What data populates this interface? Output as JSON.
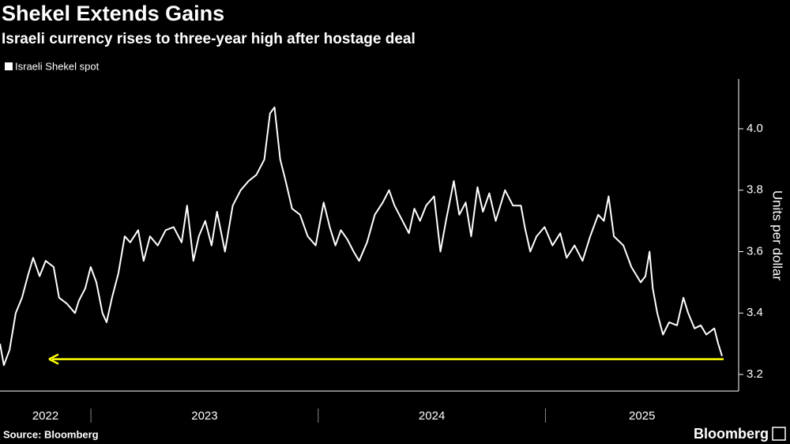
{
  "chart_data": {
    "type": "line",
    "title": "Shekel Extends Gains",
    "subtitle": "Israeli currency rises to three-year high after hostage deal",
    "y_label": "Units per dollar",
    "source": "Source: Bloomberg",
    "brand": "Bloomberg",
    "xlim": [
      2022.6,
      2025.85
    ],
    "xticks": [
      2023,
      2024,
      2025
    ],
    "x_labels": [
      2022,
      2023,
      2024,
      2025
    ],
    "ylim": [
      3.146,
      4.162
    ],
    "yticks": [
      {
        "value": 3.2,
        "label": "3.2"
      },
      {
        "value": 3.4,
        "label": "3.4"
      },
      {
        "value": 3.6,
        "label": "3.6"
      },
      {
        "value": 3.8,
        "label": "3.8"
      },
      {
        "value": 4.0,
        "label": "4.0"
      }
    ],
    "reference_line": {
      "value": 3.25,
      "color": "#ffff00"
    },
    "legend": "top-left",
    "series": [
      {
        "name": "Israeli Shekel spot",
        "color": "#ffffff",
        "x": [
          2022.6,
          2022.617,
          2022.642,
          2022.669,
          2022.697,
          2022.722,
          2022.746,
          2022.774,
          2022.801,
          2022.836,
          2022.86,
          2022.895,
          2022.93,
          2022.947,
          2022.975,
          2022.999,
          2023.024,
          2023.051,
          2023.069,
          2023.093,
          2023.121,
          2023.149,
          2023.173,
          2023.208,
          2023.232,
          2023.26,
          2023.294,
          2023.329,
          2023.364,
          2023.399,
          2023.423,
          2023.451,
          2023.475,
          2023.503,
          2023.531,
          2023.555,
          2023.59,
          2023.624,
          2023.659,
          2023.694,
          2023.728,
          2023.763,
          2023.788,
          2023.808,
          2023.833,
          2023.857,
          2023.885,
          2023.92,
          2023.954,
          2023.989,
          2024.024,
          2024.051,
          2024.076,
          2024.1,
          2024.128,
          2024.156,
          2024.18,
          2024.215,
          2024.249,
          2024.284,
          2024.312,
          2024.336,
          2024.371,
          2024.399,
          2024.423,
          2024.448,
          2024.475,
          2024.51,
          2024.538,
          2024.562,
          2024.597,
          2024.621,
          2024.649,
          2024.673,
          2024.701,
          2024.725,
          2024.753,
          2024.781,
          2024.822,
          2024.857,
          2024.892,
          2024.909,
          2024.933,
          2024.961,
          2024.996,
          2025.031,
          2025.065,
          2025.093,
          2025.128,
          2025.163,
          2025.197,
          2025.232,
          2025.257,
          2025.278,
          2025.301,
          2025.343,
          2025.378,
          2025.419,
          2025.44,
          2025.458,
          2025.472,
          2025.492,
          2025.517,
          2025.544,
          2025.579,
          2025.607,
          2025.628,
          2025.656,
          2025.683,
          2025.708,
          2025.743,
          2025.76,
          2025.777
        ],
        "values": [
          3.3,
          3.23,
          3.28,
          3.4,
          3.45,
          3.52,
          3.58,
          3.52,
          3.57,
          3.55,
          3.45,
          3.43,
          3.4,
          3.44,
          3.48,
          3.55,
          3.5,
          3.4,
          3.37,
          3.45,
          3.53,
          3.65,
          3.63,
          3.67,
          3.57,
          3.65,
          3.62,
          3.67,
          3.68,
          3.63,
          3.75,
          3.57,
          3.65,
          3.7,
          3.62,
          3.73,
          3.6,
          3.75,
          3.8,
          3.83,
          3.85,
          3.9,
          4.05,
          4.07,
          3.9,
          3.83,
          3.74,
          3.72,
          3.65,
          3.62,
          3.76,
          3.68,
          3.62,
          3.67,
          3.64,
          3.6,
          3.57,
          3.63,
          3.72,
          3.76,
          3.8,
          3.75,
          3.7,
          3.66,
          3.74,
          3.7,
          3.75,
          3.78,
          3.6,
          3.7,
          3.83,
          3.72,
          3.76,
          3.65,
          3.81,
          3.73,
          3.79,
          3.7,
          3.8,
          3.75,
          3.75,
          3.68,
          3.6,
          3.65,
          3.68,
          3.62,
          3.66,
          3.58,
          3.62,
          3.57,
          3.65,
          3.72,
          3.7,
          3.78,
          3.65,
          3.62,
          3.55,
          3.5,
          3.52,
          3.6,
          3.48,
          3.4,
          3.33,
          3.37,
          3.36,
          3.45,
          3.4,
          3.35,
          3.36,
          3.33,
          3.35,
          3.3,
          3.26
        ]
      }
    ]
  }
}
